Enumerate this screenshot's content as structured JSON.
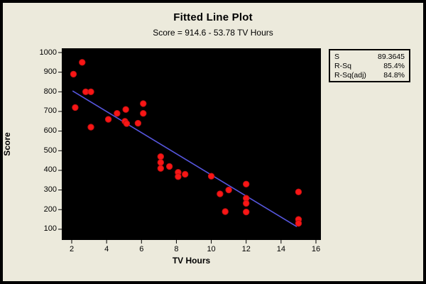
{
  "window": {
    "background": "#ECEADC",
    "frame_color": "#000000"
  },
  "header": {
    "title": "Fitted Line Plot",
    "subtitle": "Score = 914.6 - 53.78 TV Hours"
  },
  "legend": {
    "rows": [
      {
        "label": "S",
        "value": "89.3645"
      },
      {
        "label": "R-Sq",
        "value": "85.4%"
      },
      {
        "label": "R-Sq(adj)",
        "value": "84.8%"
      }
    ]
  },
  "chart_data": {
    "type": "scatter",
    "title": "Fitted Line Plot",
    "subtitle": "Score = 914.6 - 53.78 TV Hours",
    "xlabel": "TV Hours",
    "ylabel": "Score",
    "x_ticks": [
      2,
      4,
      6,
      8,
      10,
      12,
      14,
      16
    ],
    "y_ticks": [
      100,
      200,
      300,
      400,
      500,
      600,
      700,
      800,
      900,
      1000
    ],
    "xlim": [
      1.4,
      16.3
    ],
    "ylim": [
      45,
      1020
    ],
    "grid": false,
    "legend_position": "top-right",
    "points": [
      [
        2.1,
        890
      ],
      [
        2.2,
        720
      ],
      [
        2.6,
        950
      ],
      [
        2.8,
        800
      ],
      [
        3.1,
        800
      ],
      [
        3.1,
        620
      ],
      [
        4.1,
        660
      ],
      [
        4.6,
        690
      ],
      [
        5.1,
        710
      ],
      [
        5.05,
        650
      ],
      [
        5.15,
        638
      ],
      [
        5.8,
        640
      ],
      [
        6.1,
        740
      ],
      [
        6.1,
        690
      ],
      [
        7.1,
        470
      ],
      [
        7.1,
        440
      ],
      [
        7.1,
        410
      ],
      [
        7.6,
        420
      ],
      [
        8.1,
        390
      ],
      [
        8.1,
        368
      ],
      [
        8.5,
        380
      ],
      [
        10,
        370
      ],
      [
        10.5,
        280
      ],
      [
        10.8,
        190
      ],
      [
        11,
        300
      ],
      [
        12,
        330
      ],
      [
        12,
        258
      ],
      [
        12,
        232
      ],
      [
        12,
        188
      ],
      [
        15,
        290
      ],
      [
        15,
        150
      ],
      [
        15,
        130
      ]
    ],
    "fit_line": {
      "intercept": 914.6,
      "slope": -53.78,
      "x_start": 2.05,
      "x_end": 14.9
    },
    "regression_stats": {
      "S": 89.3645,
      "R-Sq": "85.4%",
      "R-Sq(adj)": "84.8%"
    },
    "colors": {
      "plot_bg": "#000000",
      "point_fill": "#F81616",
      "point_stroke": "#C41010",
      "line": "#5656DE",
      "text": "#000000"
    }
  }
}
